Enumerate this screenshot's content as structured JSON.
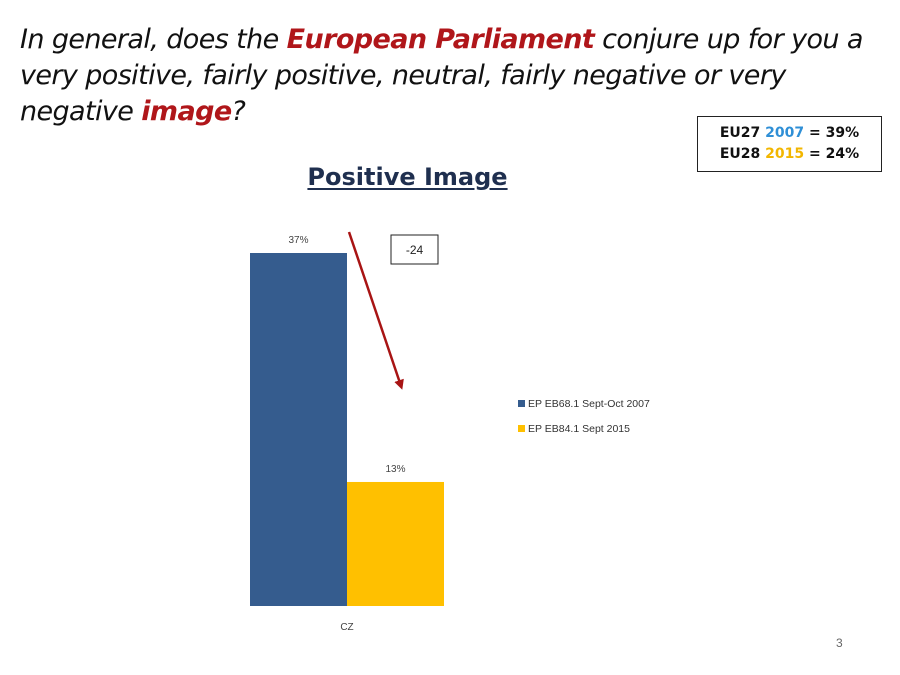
{
  "question": {
    "part1": "In general, does the ",
    "highlight1": "European Parliament",
    "part2": " conjure up for you a very positive, fairly positive, neutral, fairly negative or very negative ",
    "highlight2": "image",
    "part3": "?"
  },
  "summary": {
    "line1_prefix": "EU27 ",
    "line1_year": "2007",
    "line1_suffix": " = 39%",
    "line2_prefix": "EU28  ",
    "line2_year": "2015",
    "line2_suffix": " = 24%"
  },
  "page_number": "3",
  "colors": {
    "series_2007": "#355c8e",
    "series_2015": "#ffc000",
    "arrow": "#a81414",
    "highlight": "#b0161a"
  },
  "chart_data": {
    "type": "bar",
    "title": "Positive Image",
    "categories": [
      "CZ"
    ],
    "series": [
      {
        "name": "EP EB68.1 Sept-Oct 2007",
        "values": [
          37
        ],
        "labels": [
          "37%"
        ]
      },
      {
        "name": "EP EB84.1 Sept 2015",
        "values": [
          13
        ],
        "labels": [
          "13%"
        ]
      }
    ],
    "ylim": [
      0,
      37
    ],
    "grid": false,
    "legend": "right",
    "annotation": {
      "text": "-24",
      "arrow": "from 2007 bar toward 2015 bar"
    }
  }
}
